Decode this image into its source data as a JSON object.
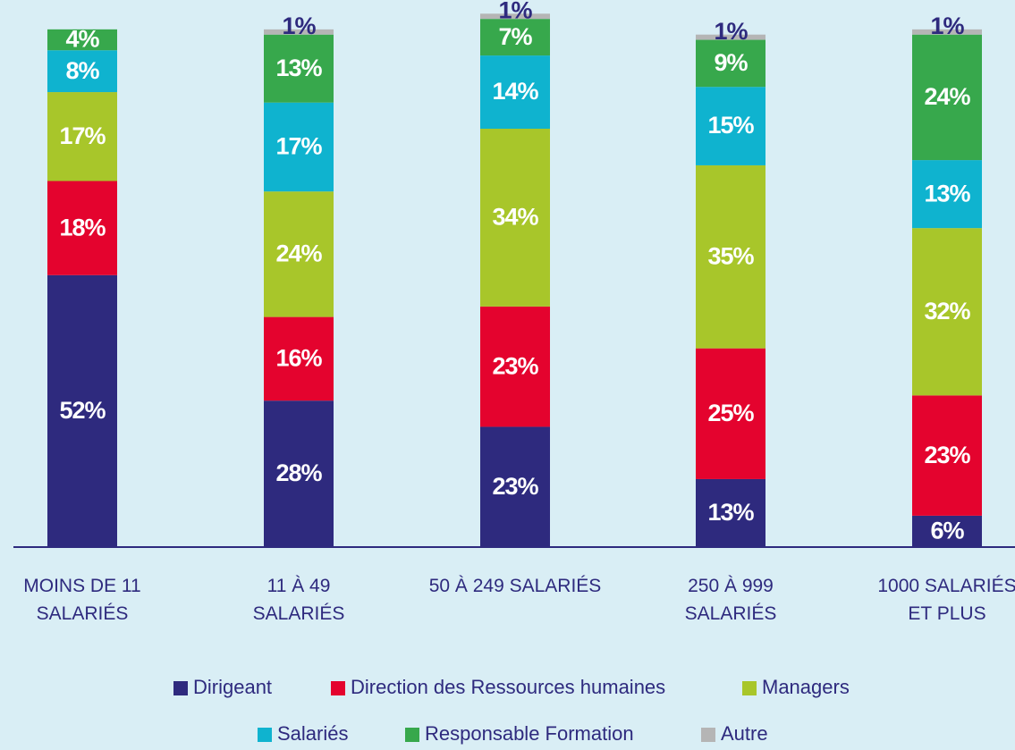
{
  "chart_data": {
    "type": "stacked-bar",
    "categories": [
      "MOINS DE 11\nSALARIÉS",
      "11 À 49\nSALARIÉS",
      "50 À 249 SALARIÉS",
      "250 À 999\nSALARIÉS",
      "1000 SALARIÉS\nET PLUS"
    ],
    "series": [
      {
        "name": "Dirigeant",
        "color": "#2e2a7e",
        "values": [
          52,
          28,
          23,
          13,
          6
        ],
        "value_labels": [
          "52%",
          "28%",
          "23%",
          "13%",
          "6%"
        ]
      },
      {
        "name": "Direction des Ressources humaines",
        "color": "#e4032e",
        "values": [
          18,
          16,
          23,
          25,
          23
        ],
        "value_labels": [
          "18%",
          "16%",
          "23%",
          "25%",
          "23%"
        ]
      },
      {
        "name": "Managers",
        "color": "#a8c62a",
        "values": [
          17,
          24,
          34,
          35,
          32
        ],
        "value_labels": [
          "17%",
          "24%",
          "34%",
          "35%",
          "32%"
        ]
      },
      {
        "name": "Salariés",
        "color": "#0fb3cf",
        "values": [
          8,
          17,
          14,
          15,
          13
        ],
        "value_labels": [
          "8%",
          "17%",
          "14%",
          "15%",
          "13%"
        ]
      },
      {
        "name": "Responsable Formation",
        "color": "#37a84c",
        "values": [
          4,
          13,
          7,
          9,
          24
        ],
        "value_labels": [
          "4%",
          "13%",
          "7%",
          "9%",
          "24%"
        ]
      },
      {
        "name": "Autre",
        "color": "#b5b5b5",
        "values": [
          null,
          1,
          1,
          1,
          1
        ],
        "value_labels": [
          null,
          "1%",
          "1%",
          "1%",
          "1%"
        ]
      }
    ],
    "ylim": [
      0,
      100
    ]
  }
}
